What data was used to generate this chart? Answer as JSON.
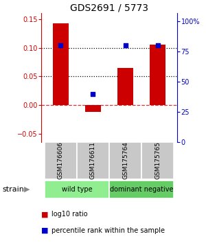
{
  "title": "GDS2691 / 5773",
  "categories": [
    "GSM176606",
    "GSM176611",
    "GSM175764",
    "GSM175765"
  ],
  "bar_values": [
    0.142,
    -0.012,
    0.065,
    0.105
  ],
  "blue_values": [
    80,
    40,
    80,
    80
  ],
  "bar_color": "#cc0000",
  "blue_color": "#0000cc",
  "ylim_left": [
    -0.065,
    0.16
  ],
  "ylim_right": [
    0,
    106.67
  ],
  "yticks_left": [
    -0.05,
    0,
    0.05,
    0.1,
    0.15
  ],
  "yticks_right": [
    0,
    25,
    50,
    75,
    100
  ],
  "ytick_labels_right": [
    "0",
    "25",
    "50",
    "75",
    "100%"
  ],
  "hline_dotted": [
    0.05,
    0.1
  ],
  "hline_dashed": 0,
  "groups": [
    {
      "label": "wild type",
      "indices": [
        0,
        1
      ],
      "color": "#90ee90"
    },
    {
      "label": "dominant negative",
      "indices": [
        2,
        3
      ],
      "color": "#66cc66"
    }
  ],
  "legend_red_label": "log10 ratio",
  "legend_blue_label": "percentile rank within the sample",
  "strain_label": "strain",
  "background_color": "#ffffff",
  "plot_bg_color": "#ffffff",
  "cell_bg_color": "#c8c8c8"
}
